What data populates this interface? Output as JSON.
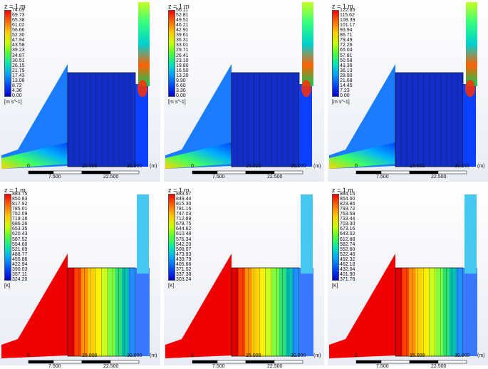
{
  "panels": [
    {
      "title": "z = 1 m",
      "unit": "[m s^-1]",
      "ticks": [
        "74.09",
        "69.73",
        "65.38",
        "61.02",
        "56.66",
        "52.30",
        "47.94",
        "43.58",
        "39.23",
        "34.87",
        "30.51",
        "26.15",
        "21.79",
        "17.43",
        "13.08",
        "8.72",
        "4.36",
        "0.00"
      ],
      "scale_top": [
        "0",
        "15.000",
        "30.000",
        "(m)"
      ],
      "scale_bottom": [
        "7.500",
        "22.500"
      ],
      "field": "velocity"
    },
    {
      "title": "z = 1 m",
      "unit": "[m s^-1]",
      "ticks": [
        "56.11",
        "52.81",
        "49.51",
        "46.21",
        "42.91",
        "39.61",
        "36.31",
        "33.01",
        "29.71",
        "26.41",
        "23.10",
        "19.80",
        "16.50",
        "13.20",
        "9.90",
        "6.60",
        "3.30",
        "0.00"
      ],
      "scale_top": [
        "0",
        "15.000",
        "30.000",
        "(m)"
      ],
      "scale_bottom": [
        "7.500",
        "22.500"
      ],
      "field": "velocity"
    },
    {
      "title": "z = 1 m",
      "unit": "[m s^-1]",
      "ticks": [
        "122.85",
        "115.62",
        "108.39",
        "101.17",
        "93.94",
        "86.71",
        "79.49",
        "72.26",
        "65.04",
        "57.81",
        "50.58",
        "43.36",
        "36.13",
        "28.90",
        "21.68",
        "14.45",
        "7.23",
        "0.00"
      ],
      "scale_top": [
        "0",
        "15.000",
        "30.000",
        "(m)"
      ],
      "scale_bottom": [
        "7.500",
        "22.500"
      ],
      "field": "velocity"
    },
    {
      "title": "z = 1 m",
      "unit": "[K]",
      "ticks": [
        "883.75",
        "850.83",
        "817.92",
        "785.01",
        "752.09",
        "719.18",
        "686.26",
        "653.35",
        "620.43",
        "587.52",
        "554.60",
        "521.69",
        "488.77",
        "455.86",
        "422.94",
        "390.03",
        "357.11",
        "324.20"
      ],
      "scale_top": [
        "0",
        "15.000",
        "30.000",
        "(m)"
      ],
      "scale_bottom": [
        "7.500",
        "22.500"
      ],
      "field": "temperature"
    },
    {
      "title": "z = 1 m",
      "unit": "[K]",
      "ticks": [
        "883.57",
        "849.44",
        "815.30",
        "781.16",
        "747.03",
        "712.89",
        "678.75",
        "644.62",
        "610.48",
        "576.34",
        "542.20",
        "508.07",
        "473.93",
        "439.79",
        "405.66",
        "371.52",
        "337.38",
        "303.24"
      ],
      "scale_top": [
        "0",
        "15.000",
        "30.000",
        "(m)"
      ],
      "scale_bottom": [
        "7.500",
        "22.500"
      ],
      "field": "temperature"
    },
    {
      "title": "z = 1 m",
      "unit": "[K]",
      "ticks": [
        "884.15",
        "854.00",
        "823.86",
        "793.72",
        "763.58",
        "733.44",
        "703.30",
        "673.16",
        "643.02",
        "612.88",
        "582.74",
        "552.60",
        "522.46",
        "492.32",
        "462.18",
        "432.04",
        "401.90",
        "371.76"
      ],
      "scale_top": [
        "0",
        "15.000",
        "30.000",
        "(m)"
      ],
      "scale_bottom": [
        "7.500",
        "22.500"
      ],
      "field": "temperature"
    }
  ],
  "colors": {
    "colormap": [
      "#ff0000",
      "#ff6a00",
      "#ffc800",
      "#c8ff00",
      "#50ff3c",
      "#00e6b4",
      "#00a0ff",
      "#0046ff",
      "#0000d2"
    ],
    "background_top": "#ffffff",
    "background_bottom": "#e8ecf6"
  }
}
